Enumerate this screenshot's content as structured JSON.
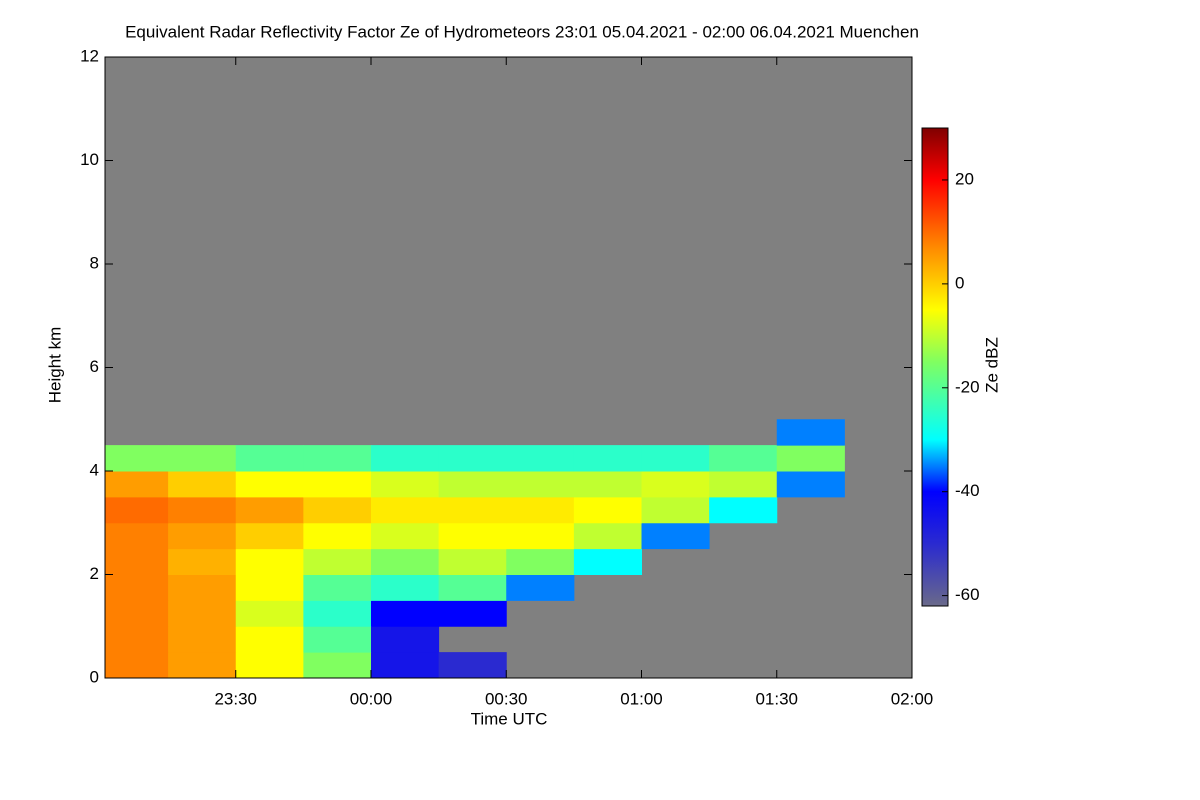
{
  "chart_data": {
    "type": "heatmap",
    "title": "Equivalent Radar Reflectivity Factor Ze of Hydrometeors   23:01 05.04.2021 - 02:00 06.04.2021 Muenchen",
    "xlabel": "Time UTC",
    "ylabel": "Height km",
    "colorbar_label": "Ze dBZ",
    "xlim": [
      1,
      180
    ],
    "ylim": [
      0,
      12
    ],
    "clim": [
      -62,
      30
    ],
    "xticks": [
      {
        "value": 30,
        "label": "23:30"
      },
      {
        "value": 60,
        "label": "00:00"
      },
      {
        "value": 90,
        "label": "00:30"
      },
      {
        "value": 120,
        "label": "01:00"
      },
      {
        "value": 150,
        "label": "01:30"
      },
      {
        "value": 180,
        "label": "02:00"
      }
    ],
    "yticks": [
      0,
      2,
      4,
      6,
      8,
      10,
      12
    ],
    "cticks": [
      20,
      0,
      -20,
      -40,
      -60
    ],
    "x_edges": [
      1,
      15,
      30,
      45,
      60,
      75,
      90,
      105,
      120,
      135,
      150,
      165,
      180
    ],
    "y_edges": [
      0,
      0.5,
      1,
      1.5,
      2,
      2.5,
      3,
      3.5,
      4,
      4.5,
      5
    ],
    "z": [
      [
        8,
        5,
        -5,
        -15,
        -45,
        -50,
        null,
        null,
        null,
        null,
        null,
        null
      ],
      [
        8,
        5,
        -5,
        -20,
        -45,
        null,
        null,
        null,
        null,
        null,
        null,
        null
      ],
      [
        8,
        5,
        -8,
        -25,
        -40,
        -40,
        null,
        null,
        null,
        null,
        null,
        null
      ],
      [
        8,
        5,
        -5,
        -20,
        -25,
        -20,
        -35,
        null,
        null,
        null,
        null,
        null
      ],
      [
        8,
        3,
        -5,
        -10,
        -15,
        -10,
        -15,
        -30,
        null,
        null,
        null,
        null
      ],
      [
        8,
        5,
        0,
        -5,
        -8,
        -5,
        -5,
        -10,
        -35,
        null,
        null,
        null
      ],
      [
        10,
        8,
        5,
        0,
        -3,
        -3,
        -3,
        -5,
        -10,
        -30,
        null,
        null
      ],
      [
        5,
        0,
        -5,
        -5,
        -8,
        -10,
        -10,
        -10,
        -8,
        -10,
        -35,
        null
      ],
      [
        -15,
        -15,
        -20,
        -20,
        -25,
        -25,
        -25,
        -25,
        -25,
        -20,
        -15,
        null
      ],
      [
        null,
        null,
        null,
        null,
        null,
        null,
        null,
        null,
        null,
        null,
        -35,
        null
      ]
    ],
    "background": "#808080",
    "colorscale": [
      {
        "value": -62,
        "color": "#6a6a8a"
      },
      {
        "value": -50,
        "color": "#2a2ad0"
      },
      {
        "value": -40,
        "color": "#0000ff"
      },
      {
        "value": -30,
        "color": "#00ffff"
      },
      {
        "value": -15,
        "color": "#80ff60"
      },
      {
        "value": -5,
        "color": "#ffff00"
      },
      {
        "value": 8,
        "color": "#ff8000"
      },
      {
        "value": 20,
        "color": "#ff0000"
      },
      {
        "value": 30,
        "color": "#800000"
      }
    ]
  }
}
